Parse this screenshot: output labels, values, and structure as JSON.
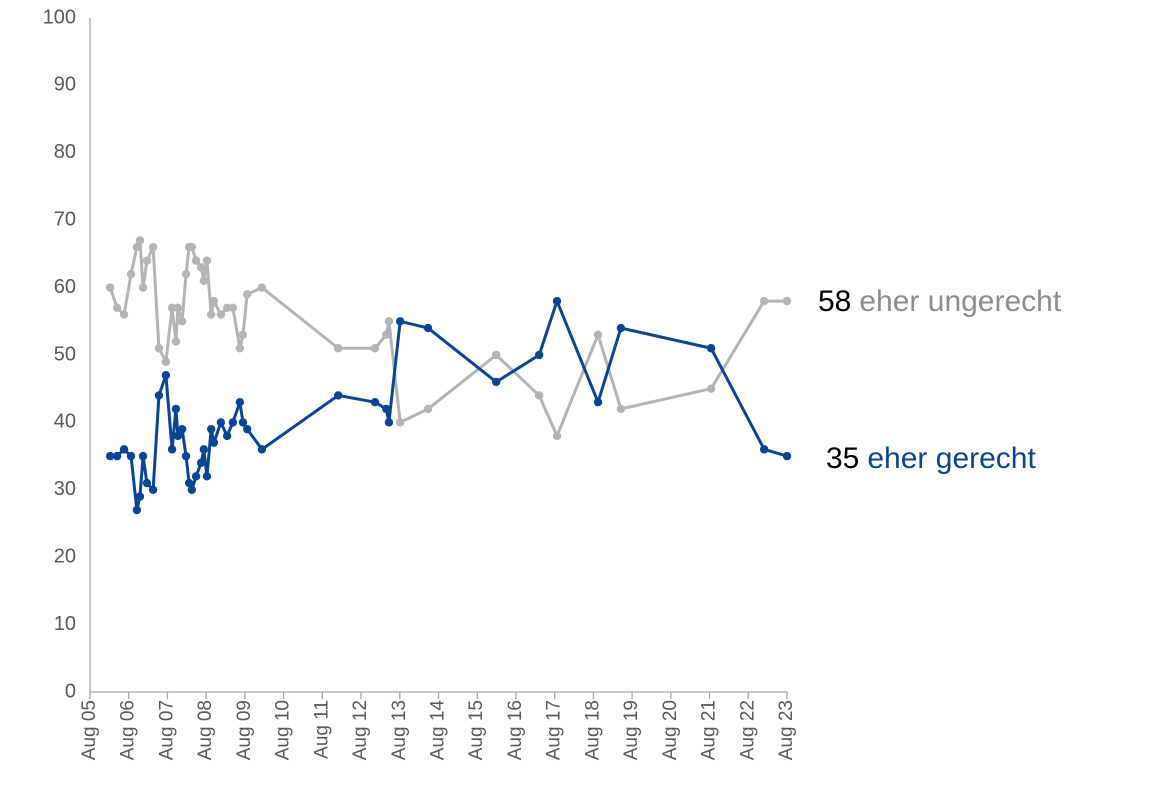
{
  "chart_data": {
    "type": "line",
    "x": [
      2006.1,
      2006.28,
      2006.46,
      2006.64,
      2006.79,
      2006.87,
      2006.95,
      2007.05,
      2007.21,
      2007.36,
      2007.54,
      2007.7,
      2007.8,
      2007.85,
      2007.96,
      2008.06,
      2008.14,
      2008.21,
      2008.32,
      2008.45,
      2008.52,
      2008.6,
      2008.71,
      2008.78,
      2008.96,
      2009.12,
      2009.27,
      2009.45,
      2009.53,
      2009.64,
      2010.02,
      2011.99,
      2012.94,
      2013.23,
      2013.3,
      2013.59,
      2014.31,
      2016.07,
      2017.18,
      2017.64,
      2018.7,
      2019.29,
      2021.62,
      2022.99,
      2023.58
    ],
    "series": [
      {
        "name": "eher gerecht",
        "color": "#0a4595",
        "values": [
          35,
          35,
          36,
          35,
          27,
          29,
          35,
          31,
          30,
          44,
          47,
          36,
          42,
          38,
          39,
          35,
          31,
          30,
          32,
          34,
          36,
          32,
          39,
          37,
          40,
          38,
          40,
          43,
          40,
          39,
          36,
          44,
          43,
          42,
          40,
          55,
          54,
          46,
          50,
          58,
          43,
          54,
          51,
          36,
          35
        ]
      },
      {
        "name": "eher ungerecht",
        "color": "#b4b4b4",
        "values": [
          60,
          57,
          56,
          62,
          66,
          67,
          60,
          64,
          66,
          51,
          49,
          57,
          52,
          57,
          55,
          62,
          66,
          66,
          64,
          63,
          61,
          64,
          56,
          58,
          56,
          57,
          57,
          51,
          53,
          59,
          60,
          51,
          51,
          53,
          55,
          40,
          42,
          50,
          44,
          38,
          53,
          42,
          45,
          58,
          58
        ]
      }
    ],
    "xlim": [
      2005.58,
      2023.58
    ],
    "xticks": [
      {
        "value": 2005.58,
        "label": "Aug 05"
      },
      {
        "value": 2006.58,
        "label": "Aug 06"
      },
      {
        "value": 2007.58,
        "label": "Aug 07"
      },
      {
        "value": 2008.58,
        "label": "Aug 08"
      },
      {
        "value": 2009.58,
        "label": "Aug 09"
      },
      {
        "value": 2010.58,
        "label": "Aug 10"
      },
      {
        "value": 2011.58,
        "label": "Aug 11"
      },
      {
        "value": 2012.58,
        "label": "Aug 12"
      },
      {
        "value": 2013.58,
        "label": "Aug 13"
      },
      {
        "value": 2014.58,
        "label": "Aug 14"
      },
      {
        "value": 2015.58,
        "label": "Aug 15"
      },
      {
        "value": 2016.58,
        "label": "Aug 16"
      },
      {
        "value": 2017.58,
        "label": "Aug 17"
      },
      {
        "value": 2018.58,
        "label": "Aug 18"
      },
      {
        "value": 2019.58,
        "label": "Aug 19"
      },
      {
        "value": 2020.58,
        "label": "Aug 20"
      },
      {
        "value": 2021.58,
        "label": "Aug 21"
      },
      {
        "value": 2022.58,
        "label": "Aug 22"
      },
      {
        "value": 2023.58,
        "label": "Aug 23"
      }
    ],
    "ylim": [
      0,
      100
    ],
    "yticks": [
      0,
      10,
      20,
      30,
      40,
      50,
      60,
      70,
      80,
      90,
      100
    ],
    "grid": false
  }
}
